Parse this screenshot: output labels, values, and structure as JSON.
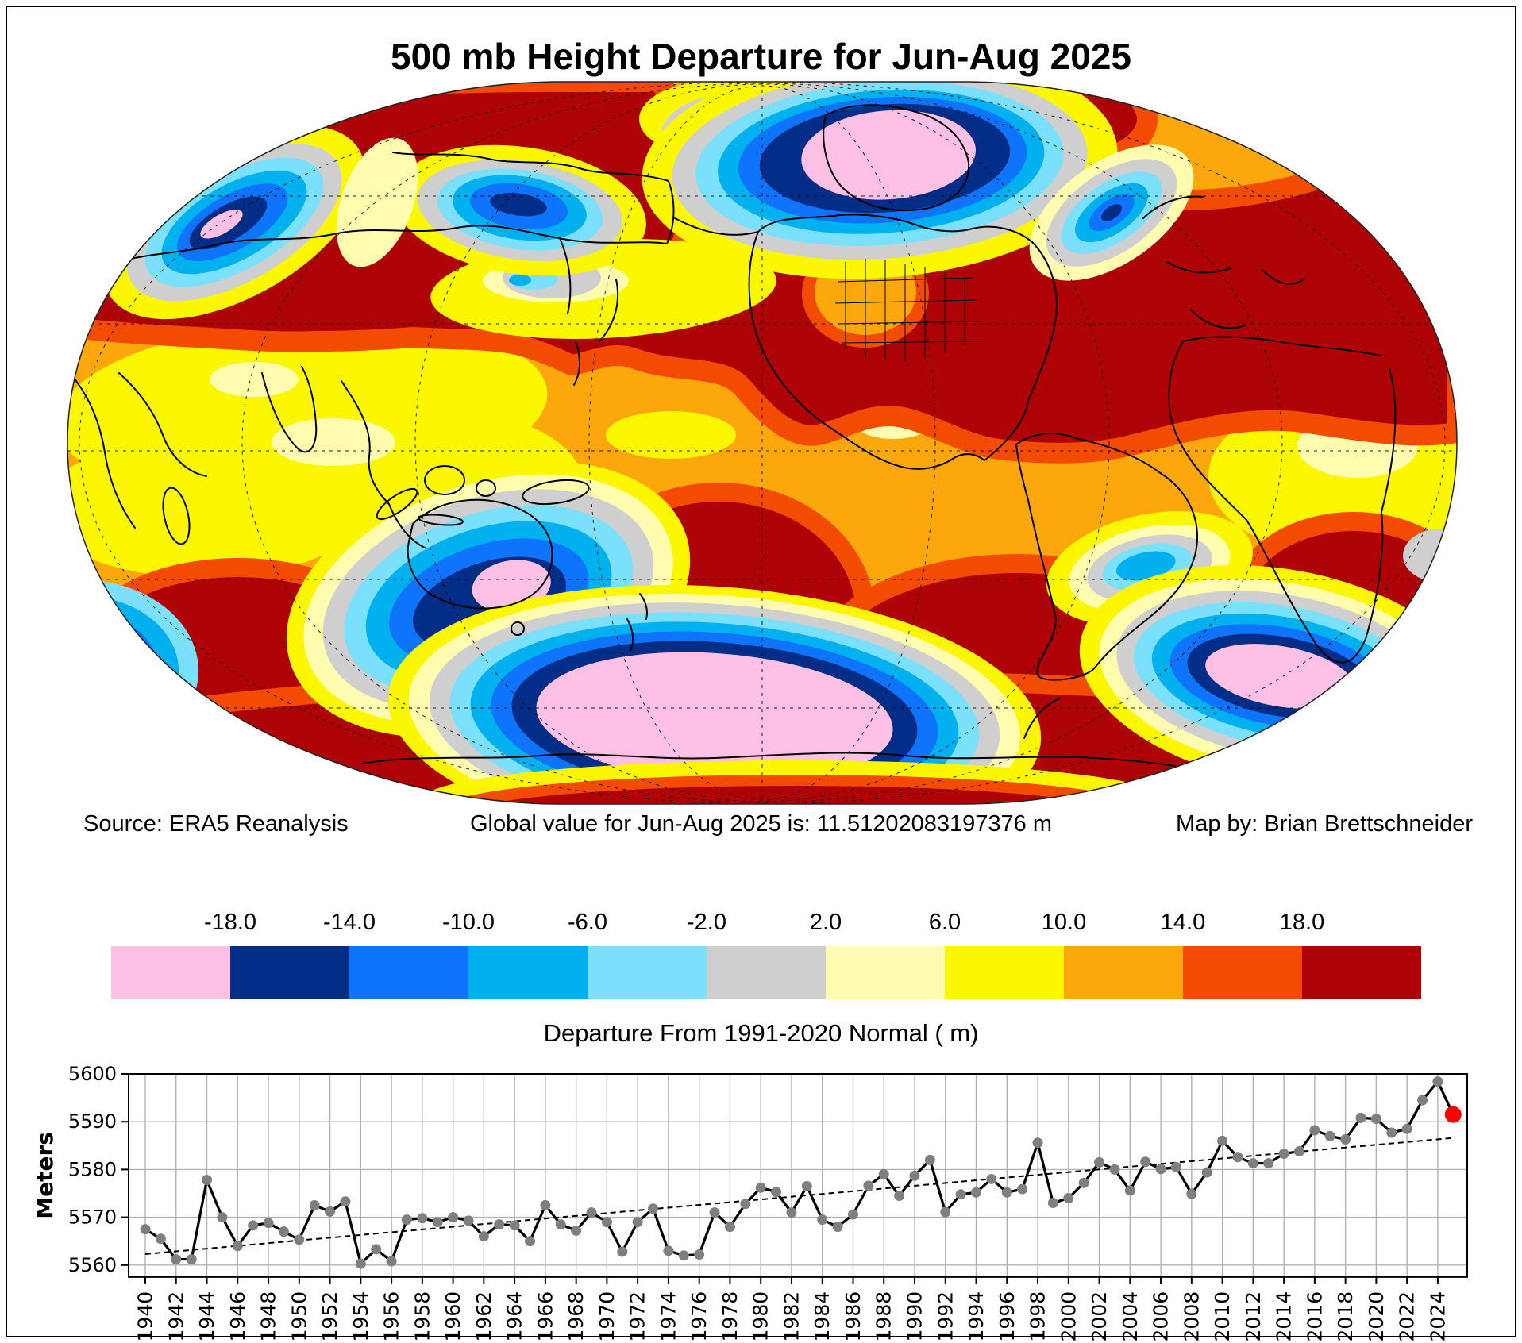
{
  "title": "500 mb Height Departure for Jun-Aug 2025",
  "map": {
    "source_label": "Source: ERA5 Reanalysis",
    "global_value_label": "Global value for Jun-Aug 2025 is: 11.51202083197376 m",
    "credit_label": "Map by: Brian Brettschneider"
  },
  "colorbar": {
    "caption": "Departure From 1991-2020 Normal ( m)",
    "tick_labels": [
      "-18.0",
      "-14.0",
      "-10.0",
      "-6.0",
      "-2.0",
      "2.0",
      "6.0",
      "10.0",
      "14.0",
      "18.0"
    ],
    "colors": [
      "#ffc0e6",
      "#032e87",
      "#0e74fb",
      "#00b0ef",
      "#7be0fc",
      "#cfcfcf",
      "#fffcb0",
      "#fbf700",
      "#fca80d",
      "#f34c02",
      "#ae0306"
    ]
  },
  "chart_data": {
    "type": "line",
    "title": "",
    "xlabel": "",
    "ylabel": "Meters",
    "ylim": [
      5557.5,
      5600
    ],
    "yticks": [
      5560,
      5570,
      5580,
      5590,
      5600
    ],
    "xtick_step": 2,
    "years_start": 1940,
    "years_end": 2024,
    "values": [
      5567.5,
      5565.5,
      5561.2,
      5561.2,
      5577.8,
      5570,
      5564,
      5568.3,
      5568.8,
      5567,
      5565.3,
      5572.5,
      5571.2,
      5573.3,
      5560.3,
      5563.3,
      5560.8,
      5569.5,
      5569.8,
      5569,
      5570,
      5569.3,
      5566,
      5568.5,
      5568.3,
      5565,
      5572.5,
      5568.5,
      5567.2,
      5571,
      5569,
      5562.8,
      5569,
      5571.8,
      5563,
      5562,
      5562.2,
      5571,
      5568,
      5572.8,
      5576.2,
      5575.3,
      5571,
      5576.5,
      5569.5,
      5568,
      5570.6,
      5576.6,
      5579,
      5574.5,
      5578.7,
      5582,
      5571.1,
      5574.8,
      5575.2,
      5578,
      5575.2,
      5575.9,
      5585.6,
      5573,
      5574,
      5577.2,
      5581.5,
      5580,
      5575.6,
      5581.6,
      5580.1,
      5580.5,
      5574.9,
      5579.4,
      5586,
      5582.6,
      5581.3,
      5581.3,
      5583.3,
      5583.8,
      5588.2,
      5587,
      5586.3,
      5590.8,
      5590.6,
      5587.7,
      5588.5,
      5594.5,
      5598.4
    ],
    "highlight_point": {
      "year": 2025,
      "value": 5591.5,
      "color": "#ff0000"
    },
    "trend_line": {
      "start_year": 1940,
      "start_value": 5562.3,
      "end_year": 2025,
      "end_value": 5586.6
    },
    "line_color": "#000000",
    "marker_color": "#7f7f7f",
    "grid_color": "#b3b3b3",
    "legend": null
  }
}
